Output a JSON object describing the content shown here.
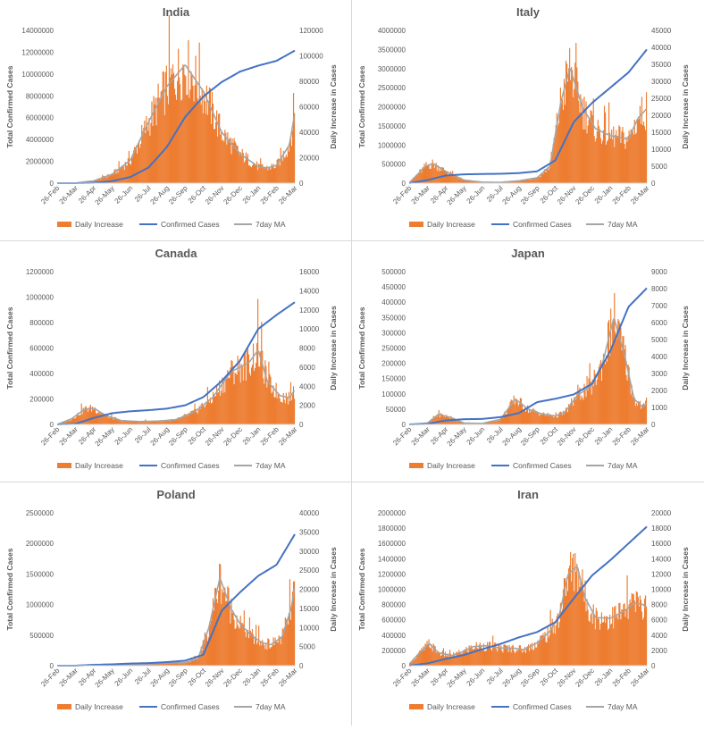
{
  "legend": {
    "daily_label": "Daily Increase",
    "confirmed_label": "Confirmed Cases",
    "ma_label": "7day MA"
  },
  "axis_titles": {
    "left": "Total Confirmed Cases",
    "right": "Daily Increase in Cases"
  },
  "colors": {
    "daily": "#ed7d31",
    "confirmed": "#4472c4",
    "ma": "#a5a5a5",
    "axis": "#d9d9d9",
    "text": "#595959"
  },
  "chart_data": [
    {
      "type": "line",
      "title": "India",
      "x_ticks": [
        "26-Feb",
        "26-Mar",
        "26-Apr",
        "26-May",
        "26-Jun",
        "26-Jul",
        "26-Aug",
        "26-Sep",
        "26-Oct",
        "26-Nov",
        "26-Dec",
        "26-Jan",
        "26-Feb",
        "26-Mar"
      ],
      "yleft_ticks": [
        "0",
        "2000000",
        "4000000",
        "6000000",
        "8000000",
        "10000000",
        "12000000",
        "14000000"
      ],
      "yright_ticks": [
        "0",
        "20000",
        "40000",
        "60000",
        "80000",
        "100000",
        "120000"
      ],
      "yleft_lim": [
        0,
        14000000
      ],
      "yright_lim": [
        0,
        120000
      ],
      "confirmed": [
        [
          0,
          0
        ],
        [
          1,
          1300
        ],
        [
          2,
          33000
        ],
        [
          3,
          190000
        ],
        [
          4,
          560000
        ],
        [
          5,
          1440000
        ],
        [
          6,
          3310000
        ],
        [
          7,
          6070000
        ],
        [
          8,
          7950000
        ],
        [
          9,
          9270000
        ],
        [
          10,
          10220000
        ],
        [
          11,
          10770000
        ],
        [
          12,
          11210000
        ],
        [
          13,
          12150000
        ]
      ],
      "daily": [
        [
          0,
          0
        ],
        [
          1,
          120
        ],
        [
          2,
          1800
        ],
        [
          3,
          7000
        ],
        [
          4,
          18000
        ],
        [
          5,
          48000
        ],
        [
          6,
          76000
        ],
        [
          7,
          93000
        ],
        [
          8,
          72000
        ],
        [
          9,
          40000
        ],
        [
          10,
          23000
        ],
        [
          11,
          13000
        ],
        [
          11.5,
          12000
        ],
        [
          12,
          14000
        ],
        [
          12.7,
          30000
        ],
        [
          13,
          55000
        ]
      ]
    },
    {
      "type": "line",
      "title": "Italy",
      "x_ticks": [
        "26-Feb",
        "26-Mar",
        "26-Apr",
        "26-May",
        "26-Jun",
        "26-Jul",
        "26-Aug",
        "26-Sep",
        "26-Oct",
        "26-Nov",
        "26-Dec",
        "26-Jan",
        "26-Feb",
        "26-Mar"
      ],
      "yleft_ticks": [
        "0",
        "500000",
        "1000000",
        "1500000",
        "2000000",
        "2500000",
        "3000000",
        "3500000",
        "4000000"
      ],
      "yright_ticks": [
        "0",
        "5000",
        "10000",
        "15000",
        "20000",
        "25000",
        "30000",
        "35000",
        "40000",
        "45000"
      ],
      "yleft_lim": [
        0,
        4000000
      ],
      "yright_lim": [
        0,
        45000
      ],
      "confirmed": [
        [
          0,
          400
        ],
        [
          1,
          80000
        ],
        [
          2,
          200000
        ],
        [
          3,
          231000
        ],
        [
          4,
          240000
        ],
        [
          5,
          246000
        ],
        [
          6,
          264000
        ],
        [
          7,
          310000
        ],
        [
          8,
          600000
        ],
        [
          9,
          1600000
        ],
        [
          10,
          2100000
        ],
        [
          11,
          2500000
        ],
        [
          12,
          2900000
        ],
        [
          13,
          3500000
        ]
      ],
      "daily": [
        [
          0,
          100
        ],
        [
          0.9,
          5000
        ],
        [
          1.3,
          5800
        ],
        [
          2,
          3500
        ],
        [
          3,
          900
        ],
        [
          4,
          300
        ],
        [
          5,
          250
        ],
        [
          6,
          700
        ],
        [
          7,
          1600
        ],
        [
          7.7,
          5000
        ],
        [
          8.3,
          24000
        ],
        [
          8.8,
          34000
        ],
        [
          9.5,
          22000
        ],
        [
          10.2,
          16000
        ],
        [
          11,
          14000
        ],
        [
          12,
          13000
        ],
        [
          12.5,
          19000
        ],
        [
          13,
          22000
        ]
      ]
    },
    {
      "type": "line",
      "title": "Canada",
      "x_ticks": [
        "26-Feb",
        "26-Mar",
        "26-Apr",
        "26-May",
        "26-Jun",
        "26-Jul",
        "26-Aug",
        "26-Sep",
        "26-Oct",
        "26-Nov",
        "26-Dec",
        "26-Jan",
        "26-Feb",
        "26-Mar"
      ],
      "yleft_ticks": [
        "0",
        "200000",
        "400000",
        "600000",
        "800000",
        "1000000",
        "1200000"
      ],
      "yright_ticks": [
        "0",
        "2000",
        "4000",
        "6000",
        "8000",
        "10000",
        "12000",
        "14000",
        "16000"
      ],
      "yleft_lim": [
        0,
        1200000
      ],
      "yright_lim": [
        0,
        16000
      ],
      "confirmed": [
        [
          0,
          15
        ],
        [
          1,
          4000
        ],
        [
          2,
          51000
        ],
        [
          3,
          88000
        ],
        [
          4,
          103000
        ],
        [
          5,
          112000
        ],
        [
          6,
          124000
        ],
        [
          7,
          150000
        ],
        [
          8,
          215000
        ],
        [
          9,
          340000
        ],
        [
          10,
          500000
        ],
        [
          11,
          750000
        ],
        [
          12,
          860000
        ],
        [
          13,
          960000
        ]
      ],
      "daily": [
        [
          0,
          0
        ],
        [
          0.8,
          600
        ],
        [
          1.5,
          1600
        ],
        [
          2,
          1700
        ],
        [
          2.7,
          900
        ],
        [
          3.5,
          400
        ],
        [
          4.5,
          300
        ],
        [
          5.5,
          350
        ],
        [
          6.5,
          500
        ],
        [
          7.5,
          1300
        ],
        [
          8.5,
          2800
        ],
        [
          9.5,
          5500
        ],
        [
          10.5,
          6500
        ],
        [
          11,
          7800
        ],
        [
          11.5,
          4500
        ],
        [
          12.2,
          3000
        ],
        [
          12.7,
          2800
        ],
        [
          13,
          3600
        ]
      ]
    },
    {
      "type": "line",
      "title": "Japan",
      "x_ticks": [
        "26-Feb",
        "26-Mar",
        "26-Apr",
        "26-May",
        "26-Jun",
        "26-Jul",
        "26-Aug",
        "26-Sep",
        "26-Oct",
        "26-Nov",
        "26-Dec",
        "26-Jan",
        "26-Feb",
        "26-Mar"
      ],
      "yleft_ticks": [
        "0",
        "50000",
        "100000",
        "150000",
        "200000",
        "250000",
        "300000",
        "350000",
        "400000",
        "450000",
        "500000"
      ],
      "yright_ticks": [
        "0",
        "1000",
        "2000",
        "3000",
        "4000",
        "5000",
        "6000",
        "7000",
        "8000",
        "9000"
      ],
      "yleft_lim": [
        0,
        500000
      ],
      "yright_lim": [
        0,
        9000
      ],
      "confirmed": [
        [
          0,
          190
        ],
        [
          1,
          1500
        ],
        [
          2,
          13000
        ],
        [
          3,
          17000
        ],
        [
          4,
          18000
        ],
        [
          5,
          24000
        ],
        [
          6,
          37000
        ],
        [
          7,
          73000
        ],
        [
          8,
          84000
        ],
        [
          9,
          98000
        ],
        [
          10,
          133000
        ],
        [
          11,
          240000
        ],
        [
          12,
          385000
        ],
        [
          13,
          446000
        ]
      ],
      "daily": [
        [
          0,
          5
        ],
        [
          1,
          80
        ],
        [
          1.6,
          600
        ],
        [
          2.3,
          400
        ],
        [
          3,
          80
        ],
        [
          4,
          60
        ],
        [
          5,
          300
        ],
        [
          5.8,
          1500
        ],
        [
          6.5,
          900
        ],
        [
          7.3,
          600
        ],
        [
          8,
          500
        ],
        [
          8.5,
          700
        ],
        [
          9.2,
          1700
        ],
        [
          10,
          2300
        ],
        [
          10.6,
          3700
        ],
        [
          11.2,
          6300
        ],
        [
          11.8,
          4000
        ],
        [
          12.3,
          1500
        ],
        [
          12.8,
          1000
        ],
        [
          13,
          1300
        ]
      ]
    },
    {
      "type": "line",
      "title": "Poland",
      "x_ticks": [
        "26-Feb",
        "26-Mar",
        "26-Apr",
        "26-May",
        "26-Jun",
        "26-Jul",
        "26-Aug",
        "26-Sep",
        "26-Oct",
        "26-Nov",
        "26-Dec",
        "26-Jan",
        "26-Feb",
        "26-Mar"
      ],
      "yleft_ticks": [
        "0",
        "500000",
        "1000000",
        "1500000",
        "2000000",
        "2500000"
      ],
      "yright_ticks": [
        "0",
        "5000",
        "10000",
        "15000",
        "20000",
        "25000",
        "30000",
        "35000",
        "40000"
      ],
      "yleft_lim": [
        0,
        2500000
      ],
      "yright_lim": [
        0,
        40000
      ],
      "confirmed": [
        [
          0,
          0
        ],
        [
          1,
          150
        ],
        [
          2,
          12000
        ],
        [
          3,
          22000
        ],
        [
          4,
          35000
        ],
        [
          5,
          42000
        ],
        [
          6,
          58000
        ],
        [
          7,
          82000
        ],
        [
          8,
          180000
        ],
        [
          9,
          900000
        ],
        [
          10,
          1200000
        ],
        [
          11,
          1470000
        ],
        [
          12,
          1650000
        ],
        [
          13,
          2150000
        ]
      ],
      "daily": [
        [
          0,
          0
        ],
        [
          1,
          40
        ],
        [
          2,
          300
        ],
        [
          3,
          350
        ],
        [
          4,
          400
        ],
        [
          5,
          380
        ],
        [
          6,
          700
        ],
        [
          7,
          800
        ],
        [
          7.7,
          1800
        ],
        [
          8.3,
          10000
        ],
        [
          8.9,
          23000
        ],
        [
          9.5,
          15000
        ],
        [
          10,
          11000
        ],
        [
          10.6,
          8000
        ],
        [
          11.2,
          6000
        ],
        [
          11.7,
          5500
        ],
        [
          12.3,
          7500
        ],
        [
          12.8,
          15000
        ],
        [
          13,
          21000
        ]
      ]
    },
    {
      "type": "line",
      "title": "Iran",
      "x_ticks": [
        "26-Feb",
        "26-Mar",
        "26-Apr",
        "26-May",
        "26-Jun",
        "26-Jul",
        "26-Aug",
        "26-Sep",
        "26-Oct",
        "26-Nov",
        "26-Dec",
        "26-Jan",
        "26-Feb",
        "26-Mar"
      ],
      "yleft_ticks": [
        "0",
        "200000",
        "400000",
        "600000",
        "800000",
        "1000000",
        "1200000",
        "1400000",
        "1600000",
        "1800000",
        "2000000"
      ],
      "yright_ticks": [
        "0",
        "2000",
        "4000",
        "6000",
        "8000",
        "10000",
        "12000",
        "14000",
        "16000",
        "18000",
        "20000"
      ],
      "yleft_lim": [
        0,
        2000000
      ],
      "yright_lim": [
        0,
        20000
      ],
      "confirmed": [
        [
          0,
          95
        ],
        [
          1,
          30000
        ],
        [
          2,
          88000
        ],
        [
          3,
          140000
        ],
        [
          4,
          215000
        ],
        [
          5,
          285000
        ],
        [
          6,
          370000
        ],
        [
          7,
          440000
        ],
        [
          8,
          570000
        ],
        [
          9,
          880000
        ],
        [
          10,
          1180000
        ],
        [
          11,
          1380000
        ],
        [
          12,
          1600000
        ],
        [
          13,
          1820000
        ]
      ],
      "daily": [
        [
          0,
          200
        ],
        [
          0.5,
          1500
        ],
        [
          1.1,
          2900
        ],
        [
          1.6,
          1700
        ],
        [
          2.3,
          1300
        ],
        [
          2.9,
          1800
        ],
        [
          3.5,
          2500
        ],
        [
          4.2,
          2600
        ],
        [
          5,
          2300
        ],
        [
          5.7,
          2300
        ],
        [
          6.3,
          2100
        ],
        [
          7,
          3000
        ],
        [
          7.7,
          4500
        ],
        [
          8.2,
          6500
        ],
        [
          8.7,
          12000
        ],
        [
          9.2,
          13000
        ],
        [
          9.6,
          9000
        ],
        [
          10.2,
          6300
        ],
        [
          11,
          6200
        ],
        [
          11.8,
          7200
        ],
        [
          12.3,
          8200
        ],
        [
          12.8,
          8000
        ],
        [
          13,
          7500
        ]
      ]
    }
  ]
}
